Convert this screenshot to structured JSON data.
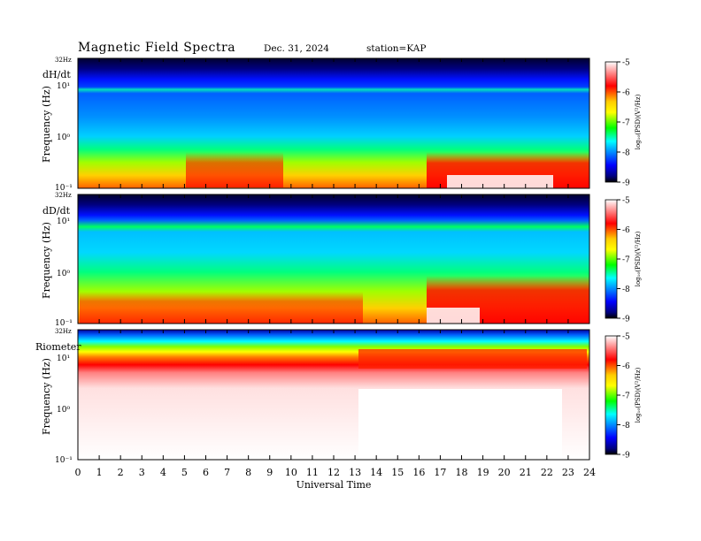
{
  "header": {
    "title": "Magnetic  Field  Spectra",
    "date": "Dec. 31, 2024",
    "station": "station=KAP"
  },
  "colorbar": {
    "label": "log₁₀(PSD)(V²/Hz)",
    "ticks": [
      "-5",
      "-6",
      "-7",
      "-8",
      "-9"
    ],
    "colors": [
      "#ffffff",
      "#ff9090",
      "#ff0000",
      "#ffcc00",
      "#ffff00",
      "#00ff00",
      "#00ffff",
      "#0080ff",
      "#0000ff",
      "#000080",
      "#000000"
    ]
  },
  "chart_data": [
    {
      "type": "heatmap",
      "name": "dH/dt",
      "ylabel": "Frequency (Hz)",
      "yticks": [
        "32Hz",
        "10¹",
        "10⁰",
        "10⁻¹"
      ],
      "xlabel": "Universal Time",
      "xticks": [
        "0",
        "1",
        "2",
        "3",
        "4",
        "5",
        "6",
        "7",
        "8",
        "9",
        "10",
        "11",
        "12",
        "13",
        "14",
        "15",
        "16",
        "17",
        "18",
        "19",
        "20",
        "21",
        "22",
        "23",
        "24"
      ],
      "xlim": [
        0,
        24
      ],
      "zlim": [
        -9,
        -5
      ]
    },
    {
      "type": "heatmap",
      "name": "dD/dt",
      "ylabel": "Frequency (Hz)",
      "yticks": [
        "32Hz",
        "10¹",
        "10⁰",
        "10⁻¹"
      ],
      "xlabel": "Universal Time",
      "xticks": [
        "0",
        "1",
        "2",
        "3",
        "4",
        "5",
        "6",
        "7",
        "8",
        "9",
        "10",
        "11",
        "12",
        "13",
        "14",
        "15",
        "16",
        "17",
        "18",
        "19",
        "20",
        "21",
        "22",
        "23",
        "24"
      ],
      "xlim": [
        0,
        24
      ],
      "zlim": [
        -9,
        -5
      ]
    },
    {
      "type": "heatmap",
      "name": "Riometer",
      "ylabel": "Frequency (Hz)",
      "yticks": [
        "32Hz",
        "10¹",
        "10⁰",
        "10⁻¹"
      ],
      "xlabel": "Universal Time",
      "xticks": [
        "0",
        "1",
        "2",
        "3",
        "4",
        "5",
        "6",
        "7",
        "8",
        "9",
        "10",
        "11",
        "12",
        "13",
        "14",
        "15",
        "16",
        "17",
        "18",
        "19",
        "20",
        "21",
        "22",
        "23",
        "24"
      ],
      "xlim": [
        0,
        24
      ],
      "zlim": [
        -9,
        -5
      ]
    }
  ]
}
